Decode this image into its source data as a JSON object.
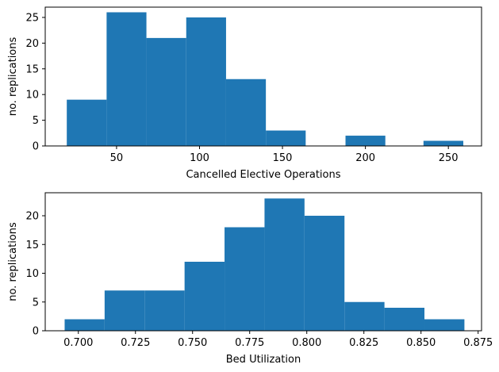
{
  "chart_data": [
    {
      "type": "bar",
      "xlabel": "Cancelled Elective Operations",
      "ylabel": "no. replications",
      "xlim": [
        7,
        270
      ],
      "ylim": [
        0,
        27
      ],
      "grid": false,
      "bins": [
        {
          "x0": 20,
          "x1": 44,
          "count": 9
        },
        {
          "x0": 44,
          "x1": 68,
          "count": 26
        },
        {
          "x0": 68,
          "x1": 92,
          "count": 21
        },
        {
          "x0": 92,
          "x1": 116,
          "count": 25
        },
        {
          "x0": 116,
          "x1": 140,
          "count": 13
        },
        {
          "x0": 140,
          "x1": 164,
          "count": 3
        },
        {
          "x0": 164,
          "x1": 188,
          "count": 0
        },
        {
          "x0": 188,
          "x1": 212,
          "count": 2
        },
        {
          "x0": 212,
          "x1": 235,
          "count": 0
        },
        {
          "x0": 235,
          "x1": 259,
          "count": 1
        }
      ],
      "xticks": [
        "50",
        "100",
        "150",
        "200",
        "250"
      ],
      "xtick_values": [
        50,
        100,
        150,
        200,
        250
      ],
      "yticks": [
        "0",
        "5",
        "10",
        "15",
        "20",
        "25"
      ],
      "ytick_values": [
        0,
        5,
        10,
        15,
        20,
        25
      ],
      "bar_color": "#1f77b4"
    },
    {
      "type": "bar",
      "xlabel": "Bed Utilization",
      "ylabel": "no. replications",
      "xlim": [
        0.6855,
        0.8765
      ],
      "ylim": [
        0,
        24
      ],
      "grid": false,
      "bins": [
        {
          "x0": 0.694,
          "x1": 0.7115,
          "count": 2
        },
        {
          "x0": 0.7115,
          "x1": 0.729,
          "count": 7
        },
        {
          "x0": 0.729,
          "x1": 0.7465,
          "count": 7
        },
        {
          "x0": 0.7465,
          "x1": 0.764,
          "count": 12
        },
        {
          "x0": 0.764,
          "x1": 0.7815,
          "count": 18
        },
        {
          "x0": 0.7815,
          "x1": 0.799,
          "count": 23
        },
        {
          "x0": 0.799,
          "x1": 0.8165,
          "count": 20
        },
        {
          "x0": 0.8165,
          "x1": 0.834,
          "count": 5
        },
        {
          "x0": 0.834,
          "x1": 0.8515,
          "count": 4
        },
        {
          "x0": 0.8515,
          "x1": 0.869,
          "count": 2
        }
      ],
      "xticks": [
        "0.700",
        "0.725",
        "0.750",
        "0.775",
        "0.800",
        "0.825",
        "0.850",
        "0.875"
      ],
      "xtick_values": [
        0.7,
        0.725,
        0.75,
        0.775,
        0.8,
        0.825,
        0.85,
        0.875
      ],
      "yticks": [
        "0",
        "5",
        "10",
        "15",
        "20"
      ],
      "ytick_values": [
        0,
        5,
        10,
        15,
        20
      ],
      "bar_color": "#1f77b4"
    }
  ]
}
